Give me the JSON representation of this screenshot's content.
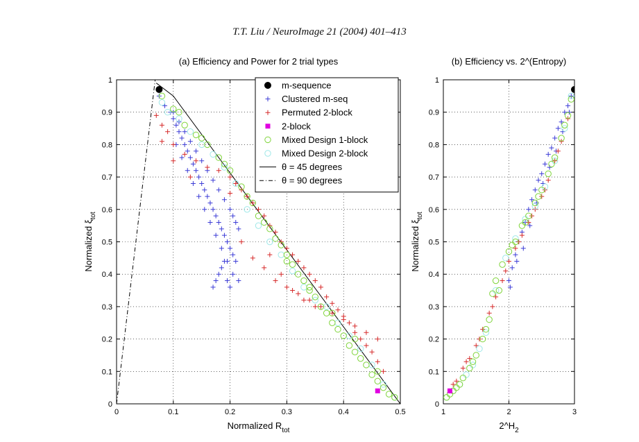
{
  "header": "T.T. Liu / NeuroImage 21 (2004) 401–413",
  "colors": {
    "m_sequence": "#000000",
    "clustered": "#3b3bd6",
    "permuted": "#d62a2a",
    "two_block": "#e000e0",
    "mixed1": "#7fd43a",
    "mixed2": "#9fe8e8",
    "line45": "#000000",
    "line90": "#000000"
  },
  "chart_data": [
    {
      "type": "scatter",
      "title": "(a) Efficiency and Power for 2 trial types",
      "xlabel": "Normalized R",
      "xlabel_sub": "tot",
      "ylabel": "Normalized ξ",
      "ylabel_sub": "tot",
      "xlim": [
        0,
        0.5
      ],
      "ylim": [
        0,
        1
      ],
      "xticks": [
        "0",
        "0.1",
        "0.2",
        "0.3",
        "0.4",
        "0.5"
      ],
      "yticks": [
        "0",
        "0.1",
        "0.2",
        "0.3",
        "0.4",
        "0.5",
        "0.6",
        "0.7",
        "0.8",
        "0.9",
        "1"
      ],
      "grid": true,
      "legend_position": "top-right",
      "legend": [
        "m-sequence",
        "Clustered m-seq",
        "Permuted 2-block",
        "2-block",
        "Mixed Design 1-block",
        "Mixed Design 2-block",
        "θ = 45 degrees",
        "θ = 90 degrees"
      ],
      "series": [
        {
          "name": "m-sequence",
          "marker": "dot",
          "x": [
            0.075
          ],
          "y": [
            0.97
          ]
        },
        {
          "name": "Clustered m-seq",
          "marker": "plus",
          "x": [
            0.075,
            0.085,
            0.095,
            0.1,
            0.105,
            0.11,
            0.115,
            0.12,
            0.125,
            0.13,
            0.135,
            0.14,
            0.145,
            0.15,
            0.155,
            0.16,
            0.165,
            0.17,
            0.175,
            0.18,
            0.185,
            0.19,
            0.195,
            0.2,
            0.205,
            0.21,
            0.1,
            0.11,
            0.12,
            0.13,
            0.14,
            0.15,
            0.16,
            0.17,
            0.18,
            0.19,
            0.2,
            0.205,
            0.21,
            0.215,
            0.17,
            0.175,
            0.18,
            0.185,
            0.19,
            0.195,
            0.2,
            0.105,
            0.115,
            0.125,
            0.135,
            0.145,
            0.155,
            0.165,
            0.175,
            0.185,
            0.195,
            0.205,
            0.215
          ],
          "y": [
            0.95,
            0.92,
            0.9,
            0.88,
            0.86,
            0.84,
            0.82,
            0.8,
            0.78,
            0.76,
            0.74,
            0.72,
            0.7,
            0.68,
            0.66,
            0.64,
            0.62,
            0.6,
            0.58,
            0.56,
            0.54,
            0.52,
            0.5,
            0.48,
            0.46,
            0.44,
            0.9,
            0.87,
            0.84,
            0.81,
            0.78,
            0.75,
            0.72,
            0.69,
            0.66,
            0.63,
            0.6,
            0.58,
            0.56,
            0.54,
            0.36,
            0.38,
            0.4,
            0.42,
            0.44,
            0.38,
            0.36,
            0.8,
            0.76,
            0.72,
            0.68,
            0.64,
            0.6,
            0.56,
            0.52,
            0.48,
            0.44,
            0.4,
            0.38
          ]
        },
        {
          "name": "Permuted 2-block",
          "marker": "plus",
          "x": [
            0.07,
            0.08,
            0.09,
            0.1,
            0.12,
            0.14,
            0.16,
            0.18,
            0.2,
            0.21,
            0.22,
            0.23,
            0.24,
            0.25,
            0.26,
            0.27,
            0.28,
            0.29,
            0.3,
            0.31,
            0.32,
            0.33,
            0.34,
            0.35,
            0.36,
            0.37,
            0.38,
            0.39,
            0.4,
            0.41,
            0.42,
            0.43,
            0.44,
            0.45,
            0.46,
            0.47,
            0.08,
            0.1,
            0.13,
            0.2,
            0.22,
            0.24,
            0.26,
            0.28,
            0.3,
            0.32,
            0.34,
            0.36,
            0.38,
            0.4,
            0.42,
            0.44,
            0.46,
            0.27,
            0.29,
            0.31,
            0.33,
            0.35
          ],
          "y": [
            0.89,
            0.86,
            0.84,
            0.8,
            0.77,
            0.75,
            0.73,
            0.72,
            0.7,
            0.68,
            0.66,
            0.64,
            0.62,
            0.6,
            0.58,
            0.55,
            0.53,
            0.5,
            0.48,
            0.46,
            0.44,
            0.42,
            0.4,
            0.38,
            0.36,
            0.33,
            0.31,
            0.29,
            0.27,
            0.25,
            0.22,
            0.2,
            0.18,
            0.16,
            0.13,
            0.1,
            0.81,
            0.75,
            0.7,
            0.65,
            0.5,
            0.45,
            0.42,
            0.38,
            0.36,
            0.34,
            0.32,
            0.3,
            0.28,
            0.26,
            0.24,
            0.22,
            0.2,
            0.46,
            0.4,
            0.35,
            0.32,
            0.3
          ]
        },
        {
          "name": "2-block",
          "marker": "square",
          "x": [
            0.46
          ],
          "y": [
            0.04
          ]
        },
        {
          "name": "Mixed Design 1-block",
          "marker": "circle",
          "x": [
            0.08,
            0.1,
            0.12,
            0.14,
            0.16,
            0.18,
            0.2,
            0.22,
            0.24,
            0.26,
            0.27,
            0.28,
            0.29,
            0.3,
            0.31,
            0.32,
            0.33,
            0.34,
            0.35,
            0.36,
            0.37,
            0.38,
            0.39,
            0.4,
            0.41,
            0.42,
            0.43,
            0.44,
            0.45,
            0.46,
            0.47,
            0.48,
            0.49,
            0.11,
            0.15,
            0.19,
            0.23,
            0.25,
            0.3,
            0.34,
            0.38,
            0.42,
            0.46
          ],
          "y": [
            0.95,
            0.91,
            0.86,
            0.83,
            0.8,
            0.76,
            0.72,
            0.67,
            0.62,
            0.56,
            0.54,
            0.51,
            0.49,
            0.46,
            0.43,
            0.4,
            0.38,
            0.35,
            0.33,
            0.3,
            0.28,
            0.25,
            0.23,
            0.21,
            0.18,
            0.16,
            0.14,
            0.12,
            0.09,
            0.07,
            0.05,
            0.03,
            0.02,
            0.9,
            0.82,
            0.74,
            0.64,
            0.58,
            0.44,
            0.36,
            0.28,
            0.2,
            0.1
          ]
        },
        {
          "name": "Mixed Design 2-block",
          "marker": "circle",
          "x": [
            0.08,
            0.09,
            0.11,
            0.13,
            0.15,
            0.17,
            0.19,
            0.21,
            0.23,
            0.25,
            0.27,
            0.29,
            0.31,
            0.33,
            0.35,
            0.37,
            0.39,
            0.41,
            0.43,
            0.45,
            0.47,
            0.49
          ],
          "y": [
            0.93,
            0.9,
            0.88,
            0.84,
            0.8,
            0.77,
            0.73,
            0.68,
            0.6,
            0.55,
            0.5,
            0.46,
            0.41,
            0.36,
            0.32,
            0.3,
            0.25,
            0.21,
            0.17,
            0.12,
            0.06,
            0.02
          ]
        },
        {
          "name": "θ = 45 degrees",
          "marker": "line",
          "x": [
            0.07,
            0.1,
            0.5
          ],
          "y": [
            0.99,
            0.95,
            0.0
          ]
        },
        {
          "name": "θ = 90 degrees",
          "marker": "dashdot",
          "x": [
            0.0,
            0.068
          ],
          "y": [
            0.0,
            1.0
          ]
        }
      ]
    },
    {
      "type": "scatter",
      "title": "(b) Efficiency vs. 2^(Entropy)",
      "xlabel": "2^H",
      "xlabel_sub": "2",
      "ylabel": "Normalized ξ",
      "ylabel_sub": "tot",
      "xlim": [
        1,
        3
      ],
      "ylim": [
        0,
        1
      ],
      "xticks": [
        "1",
        "2",
        "3"
      ],
      "yticks": [
        "0",
        "0.1",
        "0.2",
        "0.3",
        "0.4",
        "0.5",
        "0.6",
        "0.7",
        "0.8",
        "0.9",
        "1"
      ],
      "grid": true,
      "series": [
        {
          "name": "m-sequence",
          "marker": "dot",
          "x": [
            3.0
          ],
          "y": [
            0.97
          ]
        },
        {
          "name": "Clustered m-seq",
          "marker": "plus",
          "x": [
            2.0,
            2.05,
            2.1,
            2.15,
            2.2,
            2.25,
            2.3,
            2.35,
            2.4,
            2.45,
            2.5,
            2.55,
            2.6,
            2.65,
            2.7,
            2.75,
            2.8,
            2.85,
            2.9,
            2.95,
            2.02,
            2.12,
            2.22,
            2.32,
            2.42,
            2.52,
            2.62,
            2.72,
            2.82,
            2.92
          ],
          "y": [
            0.38,
            0.42,
            0.46,
            0.5,
            0.53,
            0.56,
            0.6,
            0.63,
            0.66,
            0.69,
            0.71,
            0.74,
            0.77,
            0.79,
            0.82,
            0.85,
            0.87,
            0.9,
            0.92,
            0.95,
            0.36,
            0.44,
            0.48,
            0.55,
            0.62,
            0.68,
            0.73,
            0.78,
            0.84,
            0.9
          ]
        },
        {
          "name": "Permuted 2-block",
          "marker": "plus",
          "x": [
            1.1,
            1.2,
            1.3,
            1.4,
            1.5,
            1.6,
            1.7,
            1.8,
            1.9,
            2.0,
            2.1,
            2.2,
            2.3,
            2.4,
            2.5,
            2.6,
            2.7,
            2.8,
            2.9,
            1.15,
            1.35,
            1.55,
            1.75,
            1.95,
            2.15,
            2.35,
            2.55,
            2.75
          ],
          "y": [
            0.04,
            0.07,
            0.11,
            0.14,
            0.18,
            0.23,
            0.28,
            0.33,
            0.38,
            0.44,
            0.48,
            0.52,
            0.56,
            0.6,
            0.64,
            0.69,
            0.75,
            0.81,
            0.88,
            0.06,
            0.13,
            0.2,
            0.3,
            0.41,
            0.5,
            0.58,
            0.66,
            0.78
          ]
        },
        {
          "name": "2-block",
          "marker": "square",
          "x": [
            1.1
          ],
          "y": [
            0.04
          ]
        },
        {
          "name": "Mixed Design 1-block",
          "marker": "circle",
          "x": [
            1.05,
            1.1,
            1.15,
            1.2,
            1.3,
            1.4,
            1.5,
            1.6,
            1.7,
            1.75,
            1.8,
            1.9,
            2.0,
            2.1,
            2.2,
            2.3,
            2.4,
            2.5,
            2.6,
            2.7,
            2.8,
            2.9,
            2.95,
            1.25,
            1.45,
            1.65,
            1.85,
            2.05,
            2.25,
            2.45,
            2.65,
            2.85
          ],
          "y": [
            0.02,
            0.03,
            0.04,
            0.05,
            0.08,
            0.11,
            0.15,
            0.2,
            0.26,
            0.34,
            0.38,
            0.43,
            0.47,
            0.5,
            0.55,
            0.58,
            0.62,
            0.66,
            0.71,
            0.76,
            0.82,
            0.89,
            0.94,
            0.06,
            0.13,
            0.23,
            0.35,
            0.49,
            0.56,
            0.64,
            0.74,
            0.86
          ]
        },
        {
          "name": "Mixed Design 2-block",
          "marker": "circle",
          "x": [
            1.05,
            1.15,
            1.25,
            1.35,
            1.45,
            1.55,
            1.65,
            1.8,
            1.95,
            2.1,
            2.25,
            2.4,
            2.55,
            2.7,
            2.85,
            2.95
          ],
          "y": [
            0.02,
            0.04,
            0.06,
            0.09,
            0.12,
            0.17,
            0.22,
            0.35,
            0.45,
            0.51,
            0.57,
            0.61,
            0.67,
            0.75,
            0.85,
            0.95
          ]
        }
      ]
    }
  ]
}
